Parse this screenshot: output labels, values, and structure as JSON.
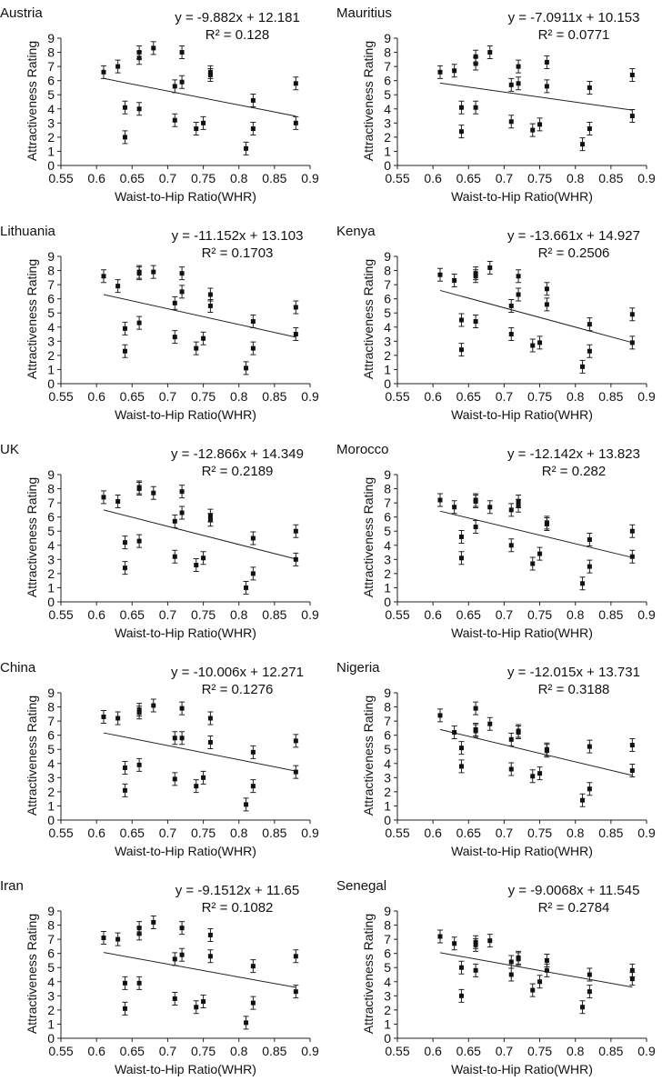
{
  "chart_data": [
    {
      "type": "scatter",
      "title": "Austria",
      "equation": "y = -9.882x + 12.181",
      "r_squared": "R² = 0.128",
      "xlabel": "Waist-to-Hip Ratio(WHR)",
      "ylabel": "Attractiveness Rating",
      "xlim": [
        0.55,
        0.9
      ],
      "ylim": [
        0,
        9
      ],
      "xticks": [
        "0.55",
        "0.6",
        "0.65",
        "0.7",
        "0.75",
        "0.8",
        "0.85",
        "0.9"
      ],
      "yticks": [
        "0",
        "1",
        "2",
        "3",
        "4",
        "5",
        "6",
        "7",
        "8",
        "9"
      ],
      "trendline": {
        "slope": -9.882,
        "intercept": 12.181,
        "x_range": [
          0.61,
          0.88
        ]
      },
      "points": [
        [
          0.61,
          6.6
        ],
        [
          0.63,
          7.0
        ],
        [
          0.64,
          4.1
        ],
        [
          0.64,
          2.0
        ],
        [
          0.66,
          7.6
        ],
        [
          0.66,
          8.0
        ],
        [
          0.66,
          4.0
        ],
        [
          0.68,
          8.3
        ],
        [
          0.71,
          3.2
        ],
        [
          0.71,
          5.6
        ],
        [
          0.72,
          5.9
        ],
        [
          0.72,
          8.0
        ],
        [
          0.74,
          2.6
        ],
        [
          0.75,
          3.0
        ],
        [
          0.76,
          6.4
        ],
        [
          0.76,
          6.6
        ],
        [
          0.81,
          1.2
        ],
        [
          0.82,
          4.6
        ],
        [
          0.82,
          2.6
        ],
        [
          0.88,
          5.8
        ],
        [
          0.88,
          3.0
        ]
      ]
    },
    {
      "type": "scatter",
      "title": "Mauritius",
      "equation": "y = -7.0911x + 10.153",
      "r_squared": "R² = 0.0771",
      "xlabel": "Waist-to-Hip Ratio(WHR)",
      "ylabel": "Attractiveness Rating",
      "xlim": [
        0.55,
        0.9
      ],
      "ylim": [
        0,
        9
      ],
      "xticks": [
        "0.55",
        "0.6",
        "0.65",
        "0.7",
        "0.75",
        "0.8",
        "0.85",
        "0.9"
      ],
      "yticks": [
        "0",
        "1",
        "2",
        "3",
        "4",
        "5",
        "6",
        "7",
        "8",
        "9"
      ],
      "trendline": {
        "slope": -7.0911,
        "intercept": 10.153,
        "x_range": [
          0.61,
          0.88
        ]
      },
      "points": [
        [
          0.61,
          6.6
        ],
        [
          0.63,
          6.7
        ],
        [
          0.64,
          4.1
        ],
        [
          0.64,
          2.4
        ],
        [
          0.66,
          7.2
        ],
        [
          0.66,
          7.7
        ],
        [
          0.66,
          4.1
        ],
        [
          0.68,
          8.0
        ],
        [
          0.71,
          3.1
        ],
        [
          0.71,
          5.7
        ],
        [
          0.72,
          5.8
        ],
        [
          0.72,
          7.0
        ],
        [
          0.74,
          2.5
        ],
        [
          0.75,
          2.9
        ],
        [
          0.76,
          5.6
        ],
        [
          0.76,
          7.3
        ],
        [
          0.81,
          1.5
        ],
        [
          0.82,
          5.5
        ],
        [
          0.82,
          2.6
        ],
        [
          0.88,
          6.4
        ],
        [
          0.88,
          3.5
        ]
      ]
    },
    {
      "type": "scatter",
      "title": "Lithuania",
      "equation": "y = -11.152x + 13.103",
      "r_squared": "R² = 0.1703",
      "xlabel": "Waist-to-Hip Ratio(WHR)",
      "ylabel": "Attractiveness Rating",
      "xlim": [
        0.55,
        0.9
      ],
      "ylim": [
        0,
        9
      ],
      "xticks": [
        "0.55",
        "0.6",
        "0.65",
        "0.7",
        "0.75",
        "0.8",
        "0.85",
        "0.9"
      ],
      "yticks": [
        "0",
        "1",
        "2",
        "3",
        "4",
        "5",
        "6",
        "7",
        "8",
        "9"
      ],
      "trendline": {
        "slope": -11.152,
        "intercept": 13.103,
        "x_range": [
          0.61,
          0.88
        ]
      },
      "points": [
        [
          0.61,
          7.6
        ],
        [
          0.63,
          6.9
        ],
        [
          0.64,
          3.9
        ],
        [
          0.64,
          2.3
        ],
        [
          0.66,
          7.8
        ],
        [
          0.66,
          7.9
        ],
        [
          0.66,
          4.3
        ],
        [
          0.68,
          7.9
        ],
        [
          0.71,
          3.3
        ],
        [
          0.71,
          5.7
        ],
        [
          0.72,
          6.5
        ],
        [
          0.72,
          7.8
        ],
        [
          0.74,
          2.5
        ],
        [
          0.75,
          3.2
        ],
        [
          0.76,
          5.5
        ],
        [
          0.76,
          6.3
        ],
        [
          0.81,
          1.1
        ],
        [
          0.82,
          4.4
        ],
        [
          0.82,
          2.5
        ],
        [
          0.88,
          5.4
        ],
        [
          0.88,
          3.5
        ]
      ]
    },
    {
      "type": "scatter",
      "title": "Kenya",
      "equation": "y = -13.661x + 14.927",
      "r_squared": "R² = 0.2506",
      "xlabel": "Waist-to-Hip Ratio(WHR)",
      "ylabel": "Attractiveness Rating",
      "xlim": [
        0.55,
        0.9
      ],
      "ylim": [
        0,
        9
      ],
      "xticks": [
        "0.55",
        "0.6",
        "0.65",
        "0.7",
        "0.75",
        "0.8",
        "0.85",
        "0.9"
      ],
      "yticks": [
        "0",
        "1",
        "2",
        "3",
        "4",
        "5",
        "6",
        "7",
        "8",
        "9"
      ],
      "trendline": {
        "slope": -13.661,
        "intercept": 14.927,
        "x_range": [
          0.61,
          0.88
        ]
      },
      "points": [
        [
          0.61,
          7.7
        ],
        [
          0.63,
          7.3
        ],
        [
          0.64,
          4.5
        ],
        [
          0.64,
          2.4
        ],
        [
          0.66,
          7.6
        ],
        [
          0.66,
          7.8
        ],
        [
          0.66,
          4.4
        ],
        [
          0.68,
          8.2
        ],
        [
          0.71,
          3.5
        ],
        [
          0.71,
          5.5
        ],
        [
          0.72,
          6.3
        ],
        [
          0.72,
          7.6
        ],
        [
          0.74,
          2.7
        ],
        [
          0.75,
          2.9
        ],
        [
          0.76,
          5.6
        ],
        [
          0.76,
          6.7
        ],
        [
          0.81,
          1.2
        ],
        [
          0.82,
          4.2
        ],
        [
          0.82,
          2.3
        ],
        [
          0.88,
          4.9
        ],
        [
          0.88,
          2.9
        ]
      ]
    },
    {
      "type": "scatter",
      "title": "UK",
      "equation": "y = -12.866x + 14.349",
      "r_squared": "R² = 0.2189",
      "xlabel": "Waist-to-Hip Ratio(WHR)",
      "ylabel": "Attractiveness Rating",
      "xlim": [
        0.55,
        0.9
      ],
      "ylim": [
        0,
        9
      ],
      "xticks": [
        "0.55",
        "0.6",
        "0.65",
        "0.7",
        "0.75",
        "0.8",
        "0.85",
        "0.9"
      ],
      "yticks": [
        "0",
        "1",
        "2",
        "3",
        "4",
        "5",
        "6",
        "7",
        "8",
        "9"
      ],
      "trendline": {
        "slope": -12.866,
        "intercept": 14.349,
        "x_range": [
          0.61,
          0.88
        ]
      },
      "points": [
        [
          0.61,
          7.4
        ],
        [
          0.63,
          7.1
        ],
        [
          0.64,
          4.2
        ],
        [
          0.64,
          2.4
        ],
        [
          0.66,
          8.0
        ],
        [
          0.66,
          8.1
        ],
        [
          0.66,
          4.3
        ],
        [
          0.68,
          7.7
        ],
        [
          0.71,
          3.2
        ],
        [
          0.71,
          5.7
        ],
        [
          0.72,
          6.3
        ],
        [
          0.72,
          7.8
        ],
        [
          0.74,
          2.6
        ],
        [
          0.75,
          3.1
        ],
        [
          0.76,
          5.8
        ],
        [
          0.76,
          6.1
        ],
        [
          0.81,
          1.0
        ],
        [
          0.82,
          4.5
        ],
        [
          0.82,
          2.0
        ],
        [
          0.88,
          5.0
        ],
        [
          0.88,
          3.0
        ]
      ]
    },
    {
      "type": "scatter",
      "title": "Morocco",
      "equation": "y = -12.142x + 13.823",
      "r_squared": "R² = 0.282",
      "xlabel": "Waist-to-Hip Ratio(WHR)",
      "ylabel": "Attractiveness Rating",
      "xlim": [
        0.55,
        0.9
      ],
      "ylim": [
        0,
        9
      ],
      "xticks": [
        "0.55",
        "0.6",
        "0.65",
        "0.7",
        "0.75",
        "0.8",
        "0.85",
        "0.9"
      ],
      "yticks": [
        "0",
        "1",
        "2",
        "3",
        "4",
        "5",
        "6",
        "7",
        "8",
        "9"
      ],
      "trendline": {
        "slope": -12.142,
        "intercept": 13.823,
        "x_range": [
          0.61,
          0.88
        ]
      },
      "points": [
        [
          0.61,
          7.2
        ],
        [
          0.63,
          6.7
        ],
        [
          0.64,
          4.6
        ],
        [
          0.64,
          3.1
        ],
        [
          0.66,
          7.1
        ],
        [
          0.66,
          7.2
        ],
        [
          0.66,
          5.3
        ],
        [
          0.68,
          6.7
        ],
        [
          0.71,
          4.0
        ],
        [
          0.71,
          6.5
        ],
        [
          0.72,
          6.8
        ],
        [
          0.72,
          7.1
        ],
        [
          0.74,
          2.7
        ],
        [
          0.75,
          3.4
        ],
        [
          0.76,
          5.5
        ],
        [
          0.76,
          5.6
        ],
        [
          0.81,
          1.3
        ],
        [
          0.82,
          4.4
        ],
        [
          0.82,
          2.5
        ],
        [
          0.88,
          5.0
        ],
        [
          0.88,
          3.2
        ]
      ]
    },
    {
      "type": "scatter",
      "title": "China",
      "equation": "y = -10.006x + 12.271",
      "r_squared": "R² = 0.1276",
      "xlabel": "Waist-to-Hip Ratio(WHR)",
      "ylabel": "Attractiveness Rating",
      "xlim": [
        0.55,
        0.9
      ],
      "ylim": [
        0,
        9
      ],
      "xticks": [
        "0.55",
        "0.6",
        "0.65",
        "0.7",
        "0.75",
        "0.8",
        "0.85",
        "0.9"
      ],
      "yticks": [
        "0",
        "1",
        "2",
        "3",
        "4",
        "5",
        "6",
        "7",
        "8",
        "9"
      ],
      "trendline": {
        "slope": -10.006,
        "intercept": 12.271,
        "x_range": [
          0.61,
          0.88
        ]
      },
      "points": [
        [
          0.61,
          7.3
        ],
        [
          0.63,
          7.2
        ],
        [
          0.64,
          3.7
        ],
        [
          0.64,
          2.1
        ],
        [
          0.66,
          7.6
        ],
        [
          0.66,
          7.8
        ],
        [
          0.66,
          3.9
        ],
        [
          0.68,
          8.1
        ],
        [
          0.71,
          2.9
        ],
        [
          0.71,
          5.8
        ],
        [
          0.72,
          5.8
        ],
        [
          0.72,
          7.9
        ],
        [
          0.74,
          2.4
        ],
        [
          0.75,
          3.0
        ],
        [
          0.76,
          5.5
        ],
        [
          0.76,
          7.2
        ],
        [
          0.81,
          1.1
        ],
        [
          0.82,
          4.8
        ],
        [
          0.82,
          2.4
        ],
        [
          0.88,
          5.6
        ],
        [
          0.88,
          3.4
        ]
      ]
    },
    {
      "type": "scatter",
      "title": "Nigeria",
      "equation": "y = -12.015x + 13.731",
      "r_squared": "R² = 0.3188",
      "xlabel": "Waist-to-Hip Ratio(WHR)",
      "ylabel": "Attractiveness Rating",
      "xlim": [
        0.55,
        0.9
      ],
      "ylim": [
        0,
        9
      ],
      "xticks": [
        "0.55",
        "0.6",
        "0.65",
        "0.7",
        "0.75",
        "0.8",
        "0.85",
        "0.9"
      ],
      "yticks": [
        "0",
        "1",
        "2",
        "3",
        "4",
        "5",
        "6",
        "7",
        "8",
        "9"
      ],
      "trendline": {
        "slope": -12.015,
        "intercept": 13.731,
        "x_range": [
          0.61,
          0.88
        ]
      },
      "points": [
        [
          0.61,
          7.4
        ],
        [
          0.63,
          6.2
        ],
        [
          0.64,
          5.1
        ],
        [
          0.64,
          3.8
        ],
        [
          0.66,
          7.9
        ],
        [
          0.66,
          6.3
        ],
        [
          0.66,
          6.4
        ],
        [
          0.68,
          6.8
        ],
        [
          0.71,
          3.6
        ],
        [
          0.71,
          5.7
        ],
        [
          0.72,
          6.2
        ],
        [
          0.72,
          6.3
        ],
        [
          0.74,
          3.1
        ],
        [
          0.75,
          3.3
        ],
        [
          0.76,
          4.9
        ],
        [
          0.76,
          5.0
        ],
        [
          0.81,
          1.4
        ],
        [
          0.82,
          5.2
        ],
        [
          0.82,
          2.2
        ],
        [
          0.88,
          5.3
        ],
        [
          0.88,
          3.5
        ]
      ]
    },
    {
      "type": "scatter",
      "title": "Iran",
      "equation": "y = -9.1512x + 11.65",
      "r_squared": "R² = 0.1082",
      "xlabel": "Waist-to-Hip Ratio(WHR)",
      "ylabel": "Attractiveness Rating",
      "xlim": [
        0.55,
        0.9
      ],
      "ylim": [
        0,
        9
      ],
      "xticks": [
        "0.55",
        "0.6",
        "0.65",
        "0.7",
        "0.75",
        "0.8",
        "0.85",
        "0.9"
      ],
      "yticks": [
        "0",
        "1",
        "2",
        "3",
        "4",
        "5",
        "6",
        "7",
        "8",
        "9"
      ],
      "trendline": {
        "slope": -9.1512,
        "intercept": 11.65,
        "x_range": [
          0.61,
          0.88
        ]
      },
      "points": [
        [
          0.61,
          7.1
        ],
        [
          0.63,
          7.0
        ],
        [
          0.64,
          3.9
        ],
        [
          0.64,
          2.1
        ],
        [
          0.66,
          7.4
        ],
        [
          0.66,
          7.8
        ],
        [
          0.66,
          3.9
        ],
        [
          0.68,
          8.2
        ],
        [
          0.71,
          2.8
        ],
        [
          0.71,
          5.6
        ],
        [
          0.72,
          5.9
        ],
        [
          0.72,
          7.8
        ],
        [
          0.74,
          2.2
        ],
        [
          0.75,
          2.6
        ],
        [
          0.76,
          5.8
        ],
        [
          0.76,
          7.3
        ],
        [
          0.81,
          1.1
        ],
        [
          0.82,
          5.1
        ],
        [
          0.82,
          2.5
        ],
        [
          0.88,
          5.8
        ],
        [
          0.88,
          3.3
        ]
      ]
    },
    {
      "type": "scatter",
      "title": "Senegal",
      "equation": "y = -9.0068x + 11.545",
      "r_squared": "R² = 0.2784",
      "xlabel": "Waist-to-Hip Ratio(WHR)",
      "ylabel": "Attractiveness Rating",
      "xlim": [
        0.55,
        0.9
      ],
      "ylim": [
        0,
        9
      ],
      "xticks": [
        "0.55",
        "0.6",
        "0.65",
        "0.7",
        "0.75",
        "0.8",
        "0.85",
        "0.9"
      ],
      "yticks": [
        "0",
        "1",
        "2",
        "3",
        "4",
        "5",
        "6",
        "7",
        "8",
        "9"
      ],
      "trendline": {
        "slope": -9.0068,
        "intercept": 11.545,
        "x_range": [
          0.61,
          0.88
        ]
      },
      "points": [
        [
          0.61,
          7.2
        ],
        [
          0.63,
          6.7
        ],
        [
          0.64,
          5.0
        ],
        [
          0.64,
          3.0
        ],
        [
          0.66,
          6.6
        ],
        [
          0.66,
          6.8
        ],
        [
          0.66,
          4.8
        ],
        [
          0.68,
          6.9
        ],
        [
          0.71,
          4.5
        ],
        [
          0.71,
          5.4
        ],
        [
          0.72,
          5.6
        ],
        [
          0.72,
          5.7
        ],
        [
          0.74,
          3.4
        ],
        [
          0.75,
          4.0
        ],
        [
          0.76,
          4.8
        ],
        [
          0.76,
          5.5
        ],
        [
          0.81,
          2.2
        ],
        [
          0.82,
          4.5
        ],
        [
          0.82,
          3.3
        ],
        [
          0.88,
          4.8
        ],
        [
          0.88,
          4.2
        ]
      ]
    }
  ]
}
